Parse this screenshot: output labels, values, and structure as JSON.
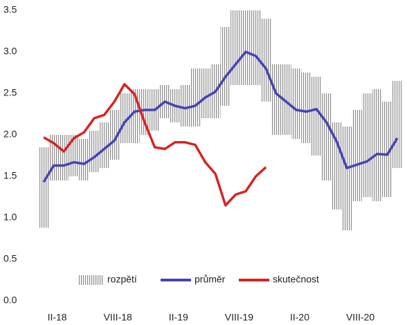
{
  "chart_data": {
    "type": "line",
    "categories": [
      null,
      "II-18",
      null,
      null,
      null,
      null,
      null,
      "VIII-18",
      null,
      null,
      null,
      null,
      null,
      "II-19",
      null,
      null,
      null,
      null,
      null,
      "VIII-19",
      null,
      null,
      null,
      null,
      null,
      "II-20",
      null,
      null,
      null,
      null,
      null,
      "VIII-20",
      null,
      null,
      null,
      null
    ],
    "series": [
      {
        "name": "rozpětí",
        "type": "band",
        "color": "#8a8a8a",
        "low": [
          0.88,
          1.45,
          1.45,
          1.5,
          1.45,
          1.55,
          1.6,
          1.7,
          1.9,
          1.9,
          2.0,
          2.05,
          2.2,
          2.15,
          2.1,
          2.1,
          2.2,
          2.2,
          2.35,
          2.6,
          2.6,
          2.6,
          2.4,
          2.0,
          2.0,
          1.95,
          1.9,
          1.75,
          1.45,
          1.1,
          0.85,
          1.2,
          1.25,
          1.2,
          1.25,
          1.6
        ],
        "high": [
          1.85,
          2.0,
          2.0,
          2.0,
          1.95,
          2.05,
          2.15,
          2.3,
          2.5,
          2.55,
          2.55,
          2.55,
          2.6,
          2.55,
          2.6,
          2.8,
          2.8,
          2.85,
          3.3,
          3.5,
          3.5,
          3.5,
          3.4,
          2.85,
          2.85,
          2.8,
          2.75,
          2.7,
          2.5,
          2.15,
          2.1,
          2.3,
          2.5,
          2.55,
          2.4,
          2.65
        ]
      },
      {
        "name": "průměr",
        "type": "line",
        "color": "#4444b4",
        "values": [
          1.43,
          1.63,
          1.63,
          1.67,
          1.65,
          1.73,
          1.83,
          1.93,
          2.15,
          2.28,
          2.3,
          2.3,
          2.4,
          2.35,
          2.32,
          2.35,
          2.45,
          2.52,
          2.7,
          2.85,
          3.0,
          2.95,
          2.8,
          2.5,
          2.4,
          2.3,
          2.28,
          2.31,
          2.15,
          1.92,
          1.6,
          1.64,
          1.68,
          1.77,
          1.76,
          1.96
        ]
      },
      {
        "name": "skutečnost",
        "type": "line",
        "color": "#d82222",
        "values": [
          1.97,
          1.9,
          1.8,
          1.96,
          2.03,
          2.2,
          2.24,
          2.4,
          2.61,
          2.49,
          2.15,
          1.85,
          1.83,
          1.91,
          1.91,
          1.88,
          1.67,
          1.53,
          1.15,
          1.28,
          1.32,
          1.5,
          1.61,
          null,
          null,
          null,
          null,
          null,
          null,
          null,
          null,
          null,
          null,
          null,
          null,
          null
        ]
      }
    ],
    "ylim": [
      0,
      3.5
    ],
    "yticks": [
      {
        "value": 0,
        "label": "0.0"
      },
      0.5,
      {
        "value": 1,
        "label": "1.0"
      },
      1.5,
      {
        "value": 2,
        "label": "2.0"
      },
      2.5,
      {
        "value": 3,
        "label": "3.0"
      },
      3.5
    ],
    "grid": false
  }
}
